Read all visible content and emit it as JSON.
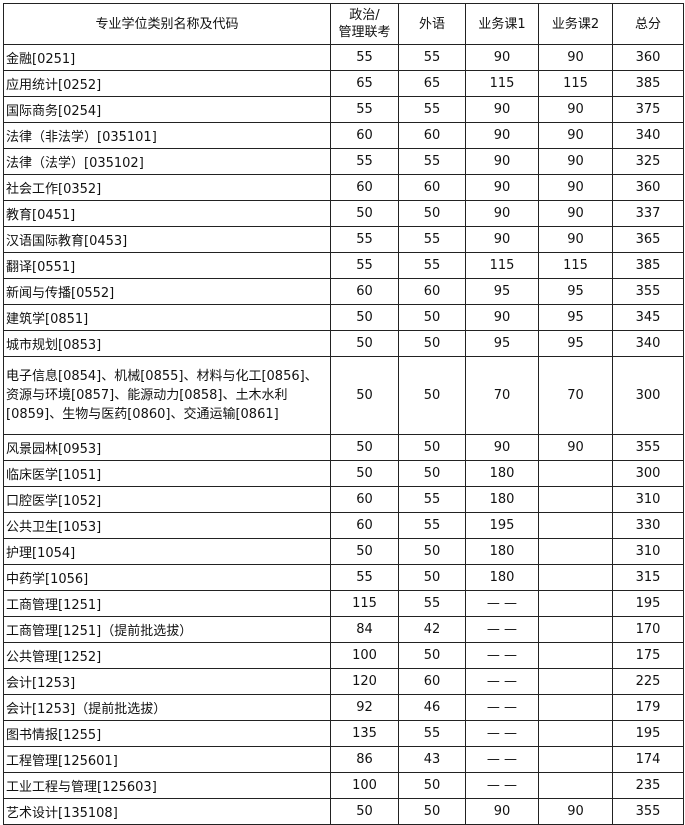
{
  "headers": [
    "专业学位类别名称及代码",
    "政治/\n管理联考",
    "外语",
    "业务课1",
    "业务课2",
    "总分"
  ],
  "rows": [
    [
      "金融[0251]",
      "55",
      "55",
      "90",
      "90",
      "360"
    ],
    [
      "应用统计[0252]",
      "65",
      "65",
      "115",
      "115",
      "385"
    ],
    [
      "国际商务[0254]",
      "55",
      "55",
      "90",
      "90",
      "375"
    ],
    [
      "法律（非法学）[035101]",
      "60",
      "60",
      "90",
      "90",
      "340"
    ],
    [
      "法律（法学）[035102]",
      "55",
      "55",
      "90",
      "90",
      "325"
    ],
    [
      "社会工作[0352]",
      "60",
      "60",
      "90",
      "90",
      "360"
    ],
    [
      "教育[0451]",
      "50",
      "50",
      "90",
      "90",
      "337"
    ],
    [
      "汉语国际教育[0453]",
      "55",
      "55",
      "90",
      "90",
      "365"
    ],
    [
      "翻译[0551]",
      "55",
      "55",
      "115",
      "115",
      "385"
    ],
    [
      "新闻与传播[0552]",
      "60",
      "60",
      "95",
      "95",
      "355"
    ],
    [
      "建筑学[0851]",
      "50",
      "50",
      "90",
      "95",
      "345"
    ],
    [
      "城市规划[0853]",
      "50",
      "50",
      "95",
      "95",
      "340"
    ],
    [
      "电子信息[0854]、机械[0855]、材料与化工[0856]、资源与环境[0857]、能源动力[0858]、土木水利[0859]、生物与医药[0860]、交通运输[0861]",
      "50",
      "50",
      "70",
      "70",
      "300"
    ],
    [
      "风景园林[0953]",
      "50",
      "50",
      "90",
      "90",
      "355"
    ],
    [
      "临床医学[1051]",
      "50",
      "50",
      "180",
      "",
      "300"
    ],
    [
      "口腔医学[1052]",
      "60",
      "55",
      "180",
      "",
      "310"
    ],
    [
      "公共卫生[1053]",
      "60",
      "55",
      "195",
      "",
      "330"
    ],
    [
      "护理[1054]",
      "50",
      "50",
      "180",
      "",
      "310"
    ],
    [
      "中药学[1056]",
      "55",
      "50",
      "180",
      "",
      "315"
    ],
    [
      "工商管理[1251]",
      "115",
      "55",
      "— —",
      "",
      "195"
    ],
    [
      "工商管理[1251]（提前批选拔）",
      "84",
      "42",
      "— —",
      "",
      "170"
    ],
    [
      "公共管理[1252]",
      "100",
      "50",
      "— —",
      "",
      "175"
    ],
    [
      "会计[1253]",
      "120",
      "60",
      "— —",
      "",
      "225"
    ],
    [
      "会计[1253]（提前批选拔）",
      "92",
      "46",
      "— —",
      "",
      "179"
    ],
    [
      "图书情报[1255]",
      "135",
      "55",
      "— —",
      "",
      "195"
    ],
    [
      "工程管理[125601]",
      "86",
      "43",
      "— —",
      "",
      "174"
    ],
    [
      "工业工程与管理[125603]",
      "100",
      "50",
      "— —",
      "",
      "235"
    ],
    [
      "艺术设计[135108]",
      "50",
      "50",
      "90",
      "90",
      "355"
    ]
  ]
}
